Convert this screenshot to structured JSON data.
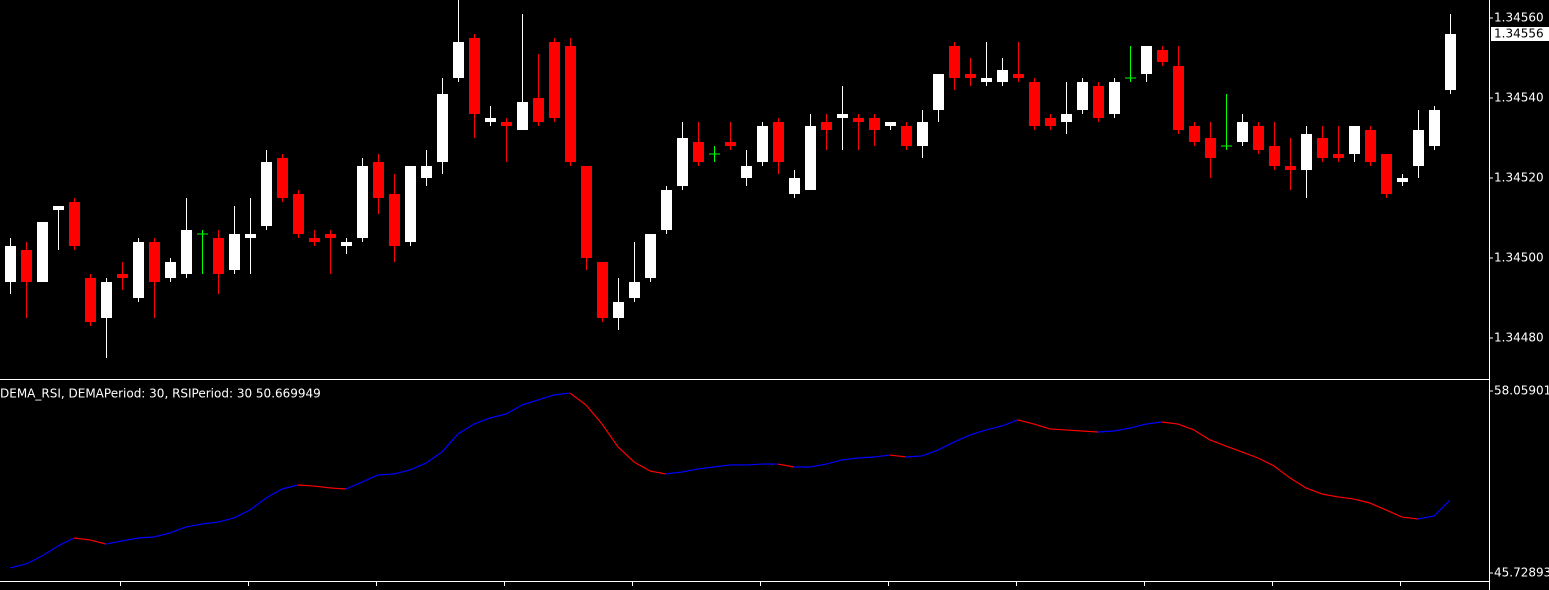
{
  "chart_data": [
    {
      "type": "candlestick",
      "ylim": [
        1.3447,
        1.345645
      ],
      "yticks": [
        {
          "value": 1.3448,
          "label": "1.34480"
        },
        {
          "value": 1.345,
          "label": "1.34500"
        },
        {
          "value": 1.3452,
          "label": "1.34520"
        },
        {
          "value": 1.3454,
          "label": "1.34540"
        },
        {
          "value": 1.3456,
          "label": "1.34560"
        }
      ],
      "last_price": {
        "value": 1.34556,
        "label": "1.34556"
      },
      "up_color": "#ffffff",
      "down_color": "#ff0000",
      "doji_color": "#00ff00",
      "open": [
        1.34494,
        1.34502,
        1.34494,
        1.34512,
        1.34514,
        1.34495,
        1.34485,
        1.34496,
        1.3449,
        1.34504,
        1.34495,
        1.34496,
        1.34506,
        1.34505,
        1.34497,
        1.34505,
        1.34508,
        1.34525,
        1.34516,
        1.34505,
        1.34506,
        1.34503,
        1.34505,
        1.34524,
        1.34516,
        1.34504,
        1.3452,
        1.34524,
        1.34545,
        1.34555,
        1.34534,
        1.34534,
        1.34532,
        1.3454,
        1.34554,
        1.34553,
        1.34523,
        1.34499,
        1.34485,
        1.3449,
        1.34495,
        1.34507,
        1.34518,
        1.34529,
        1.34526,
        1.34529,
        1.3452,
        1.34524,
        1.34534,
        1.34516,
        1.34517,
        1.34534,
        1.34535,
        1.34535,
        1.34535,
        1.34533,
        1.34533,
        1.34528,
        1.34537,
        1.34553,
        1.34546,
        1.34544,
        1.34544,
        1.34546,
        1.34544,
        1.34535,
        1.34534,
        1.34537,
        1.34543,
        1.34536,
        1.34545,
        1.34546,
        1.34552,
        1.34548,
        1.34533,
        1.3453,
        1.34528,
        1.34529,
        1.34533,
        1.34528,
        1.34523,
        1.34522,
        1.3453,
        1.34526,
        1.34526,
        1.34532,
        1.34526,
        1.34519,
        1.34523,
        1.34528,
        1.34542
      ],
      "high": [
        1.34505,
        1.34504,
        1.34509,
        1.34513,
        1.34515,
        1.34496,
        1.34495,
        1.34499,
        1.34505,
        1.34505,
        1.345,
        1.34515,
        1.34507,
        1.34507,
        1.34513,
        1.34515,
        1.34527,
        1.34526,
        1.34517,
        1.34507,
        1.34507,
        1.34505,
        1.34525,
        1.34526,
        1.34521,
        1.34523,
        1.34527,
        1.34545,
        1.34565,
        1.34556,
        1.34538,
        1.34535,
        1.34561,
        1.34551,
        1.34555,
        1.34555,
        1.34523,
        1.34499,
        1.34495,
        1.34504,
        1.34506,
        1.34518,
        1.34534,
        1.34534,
        1.34528,
        1.34534,
        1.34527,
        1.34534,
        1.34535,
        1.34522,
        1.34536,
        1.34536,
        1.34543,
        1.34536,
        1.34536,
        1.34534,
        1.34534,
        1.34537,
        1.34546,
        1.34554,
        1.3455,
        1.34554,
        1.3455,
        1.34554,
        1.34545,
        1.34536,
        1.34544,
        1.34545,
        1.34544,
        1.34545,
        1.34553,
        1.34553,
        1.34553,
        1.34553,
        1.34534,
        1.34534,
        1.34541,
        1.34536,
        1.34534,
        1.34534,
        1.3453,
        1.34533,
        1.34533,
        1.34533,
        1.34533,
        1.34533,
        1.34526,
        1.34521,
        1.34537,
        1.34538,
        1.34561
      ],
      "low": [
        1.34491,
        1.34485,
        1.34494,
        1.34502,
        1.34502,
        1.34483,
        1.34475,
        1.34492,
        1.34489,
        1.34485,
        1.34494,
        1.34495,
        1.34496,
        1.34491,
        1.34496,
        1.34496,
        1.34507,
        1.34514,
        1.34505,
        1.34503,
        1.34496,
        1.34501,
        1.34504,
        1.34511,
        1.34499,
        1.34503,
        1.34518,
        1.34521,
        1.34544,
        1.3453,
        1.34533,
        1.34524,
        1.34532,
        1.34533,
        1.34534,
        1.34523,
        1.34497,
        1.34484,
        1.34482,
        1.34489,
        1.34494,
        1.34506,
        1.34517,
        1.34523,
        1.34524,
        1.34527,
        1.34518,
        1.34523,
        1.34521,
        1.34515,
        1.34517,
        1.34527,
        1.34527,
        1.34527,
        1.34528,
        1.34532,
        1.34527,
        1.34525,
        1.34534,
        1.34542,
        1.34543,
        1.34543,
        1.34543,
        1.34544,
        1.34532,
        1.34532,
        1.34531,
        1.34536,
        1.34534,
        1.34535,
        1.34544,
        1.34544,
        1.34548,
        1.34531,
        1.34528,
        1.3452,
        1.34527,
        1.34528,
        1.34526,
        1.34522,
        1.34517,
        1.34515,
        1.34524,
        1.34524,
        1.34524,
        1.34523,
        1.34515,
        1.34518,
        1.3452,
        1.34527,
        1.34541
      ],
      "close": [
        1.34503,
        1.34494,
        1.34509,
        1.34513,
        1.34503,
        1.34484,
        1.34494,
        1.34495,
        1.34504,
        1.34494,
        1.34499,
        1.34507,
        1.34506,
        1.34496,
        1.34506,
        1.34506,
        1.34524,
        1.34515,
        1.34506,
        1.34504,
        1.34505,
        1.34504,
        1.34523,
        1.34515,
        1.34503,
        1.34523,
        1.34523,
        1.34541,
        1.34554,
        1.34536,
        1.34535,
        1.34533,
        1.34539,
        1.34534,
        1.34535,
        1.34524,
        1.345,
        1.34485,
        1.34489,
        1.34494,
        1.34506,
        1.34517,
        1.3453,
        1.34524,
        1.34526,
        1.34528,
        1.34523,
        1.34533,
        1.34524,
        1.3452,
        1.34533,
        1.34532,
        1.34536,
        1.34534,
        1.34532,
        1.34534,
        1.34528,
        1.34534,
        1.34546,
        1.34545,
        1.34545,
        1.34545,
        1.34547,
        1.34545,
        1.34533,
        1.34533,
        1.34536,
        1.34544,
        1.34535,
        1.34544,
        1.34545,
        1.34553,
        1.34549,
        1.34532,
        1.34529,
        1.34525,
        1.34528,
        1.34534,
        1.34527,
        1.34523,
        1.34522,
        1.34531,
        1.34525,
        1.34525,
        1.34533,
        1.34524,
        1.34516,
        1.3452,
        1.34532,
        1.34537,
        1.34556
      ]
    },
    {
      "type": "line",
      "title": "DEMA_RSI, DEMAPeriod: 30, RSIPeriod: 30  50.669949",
      "ylim": [
        45.72893,
        58.05901
      ],
      "yticks": [
        58.05901,
        45.72893
      ],
      "up_color": "#0000ff",
      "down_color": "#ff0000",
      "values": [
        46.07,
        46.34,
        46.88,
        47.56,
        48.1,
        47.97,
        47.69,
        47.9,
        48.1,
        48.17,
        48.44,
        48.85,
        49.05,
        49.18,
        49.46,
        50.0,
        50.81,
        51.42,
        51.69,
        51.62,
        51.49,
        51.42,
        51.89,
        52.37,
        52.44,
        52.71,
        53.18,
        53.93,
        55.15,
        55.82,
        56.23,
        56.5,
        57.11,
        57.45,
        57.79,
        57.92,
        57.11,
        55.82,
        54.27,
        53.25,
        52.64,
        52.44,
        52.57,
        52.78,
        52.91,
        53.05,
        53.05,
        53.11,
        53.11,
        52.91,
        52.91,
        53.11,
        53.39,
        53.52,
        53.59,
        53.72,
        53.59,
        53.66,
        54.06,
        54.6,
        55.08,
        55.42,
        55.69,
        56.1,
        55.82,
        55.49,
        55.42,
        55.35,
        55.28,
        55.35,
        55.55,
        55.82,
        55.96,
        55.82,
        55.42,
        54.74,
        54.33,
        53.93,
        53.52,
        52.98,
        52.17,
        51.49,
        51.08,
        50.88,
        50.74,
        50.47,
        50.0,
        49.52,
        49.39,
        49.59,
        50.67
      ]
    }
  ]
}
